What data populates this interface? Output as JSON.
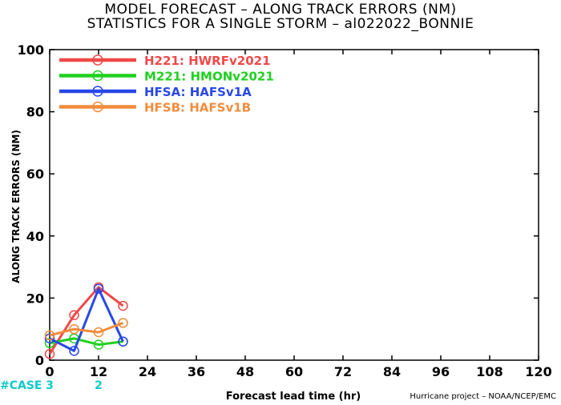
{
  "title_line1": "MODEL FORECAST – ALONG TRACK ERRORS (NM)",
  "title_line2": "STATISTICS FOR A SINGLE STORM – al022022_BONNIE",
  "credit": "Hurricane project – NOAA/NCEP/EMC",
  "case_label": "#CASE",
  "case_counts": [
    {
      "x": 0,
      "count": "3"
    },
    {
      "x": 12,
      "count": "2"
    }
  ],
  "colors": {
    "case": "#10c8c8"
  },
  "chart_data": {
    "type": "line",
    "xlabel": "Forecast lead time (hr)",
    "ylabel": "ALONG TRACK ERRORS (NM)",
    "xlim": [
      0,
      120
    ],
    "ylim": [
      0,
      100
    ],
    "xticks": [
      0,
      12,
      24,
      36,
      48,
      60,
      72,
      84,
      96,
      108,
      120
    ],
    "yticks": [
      0,
      20,
      40,
      60,
      80,
      100
    ],
    "legend_position": "top-left",
    "series": [
      {
        "name": "H221: HWRFv2021",
        "color": "#f04848",
        "x": [
          0,
          6,
          12,
          18
        ],
        "y": [
          2,
          14.5,
          23.5,
          17.5
        ]
      },
      {
        "name": "M221: HMONv2021",
        "color": "#20d020",
        "x": [
          0,
          6,
          12,
          18
        ],
        "y": [
          5.5,
          7,
          5,
          6
        ]
      },
      {
        "name": "HFSA: HAFSv1A",
        "color": "#2848e8",
        "x": [
          0,
          6,
          12,
          18
        ],
        "y": [
          7,
          3,
          23,
          6
        ]
      },
      {
        "name": "HFSB: HAFSv1B",
        "color": "#f08c3c",
        "x": [
          0,
          6,
          12,
          18
        ],
        "y": [
          8,
          10,
          9,
          12
        ]
      }
    ]
  }
}
